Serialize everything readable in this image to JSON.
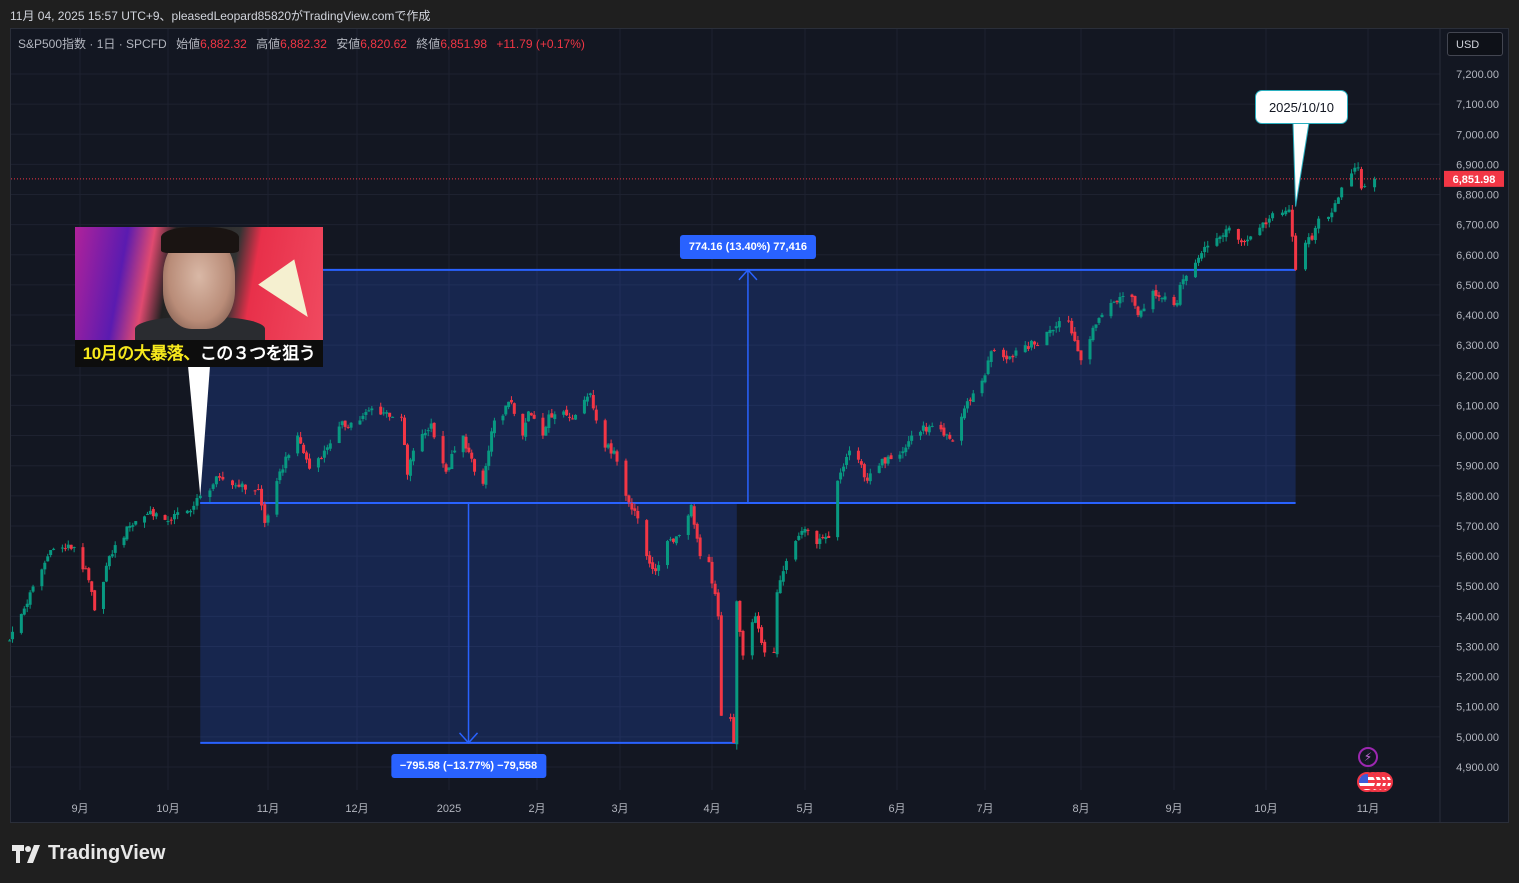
{
  "header": {
    "created_line": "11月 04, 2025 15:57 UTC+9、pleasedLeopard85820がTradingView.comで作成"
  },
  "legend": {
    "symbol": "S&P500指数 · 1日 · SPCFD",
    "open_label": "始値",
    "open": "6,882.32",
    "high_label": "高値",
    "high": "6,882.32",
    "low_label": "安値",
    "low": "6,820.62",
    "close_label": "終値",
    "close": "6,851.98",
    "change": "+11.79 (+0.17%)"
  },
  "currency_button": "USD",
  "last_price_tag": "6,851.98",
  "callout": {
    "text": "2025/10/10",
    "date": "2025-10-10",
    "price": 6760
  },
  "thumbnail": {
    "caption_yellow": "10月の大暴落、",
    "caption_white": "この３つを狙う"
  },
  "brand": "TradingView",
  "colors": {
    "up": "#089981",
    "down": "#f23645",
    "measure": "#2962ff",
    "background": "#131722",
    "grid": "#1e2230",
    "last_price": "#f23645"
  },
  "icons": [
    "lightning-icon",
    "us-flag-event-icon",
    "tradingview-logo-icon"
  ],
  "chart_data": {
    "type": "candlestick",
    "title": "",
    "interval": "1日",
    "y_axis": {
      "ylim": [
        4850,
        7250
      ],
      "ticks": [
        7200,
        7100,
        7000,
        6900,
        6800,
        6700,
        6600,
        6500,
        6400,
        6300,
        6200,
        6100,
        6000,
        5900,
        5800,
        5700,
        5600,
        5500,
        5400,
        5300,
        5200,
        5100,
        5000,
        4900
      ],
      "tick_labels": [
        "7,200.00",
        "7,100.00",
        "7,000.00",
        "6,900.00",
        "6,800.00",
        "6,700.00",
        "6,600.00",
        "6,500.00",
        "6,400.00",
        "6,300.00",
        "6,200.00",
        "6,100.00",
        "6,000.00",
        "5,900.00",
        "5,800.00",
        "5,700.00",
        "5,600.00",
        "5,500.00",
        "5,400.00",
        "5,300.00",
        "5,200.00",
        "5,100.00",
        "5,000.00",
        "4,900.00"
      ]
    },
    "x_axis": {
      "ticks": [
        {
          "date": "2024-09-01",
          "label": "9月"
        },
        {
          "date": "2024-10-01",
          "label": "10月"
        },
        {
          "date": "2024-11-01",
          "label": "11月"
        },
        {
          "date": "2024-12-01",
          "label": "12月"
        },
        {
          "date": "2025-01-01",
          "label": "2025"
        },
        {
          "date": "2025-02-01",
          "label": "2月"
        },
        {
          "date": "2025-03-01",
          "label": "3月"
        },
        {
          "date": "2025-04-01",
          "label": "4月"
        },
        {
          "date": "2025-05-01",
          "label": "5月"
        },
        {
          "date": "2025-06-01",
          "label": "6月"
        },
        {
          "date": "2025-07-01",
          "label": "7月"
        },
        {
          "date": "2025-08-01",
          "label": "8月"
        },
        {
          "date": "2025-09-01",
          "label": "9月"
        },
        {
          "date": "2025-10-01",
          "label": "10月"
        },
        {
          "date": "2025-11-01",
          "label": "11月"
        }
      ]
    },
    "grid": true,
    "last_price": 6851.98,
    "close_path": [
      [
        "2024-08-08",
        5320
      ],
      [
        "2024-08-22",
        5620
      ],
      [
        "2024-08-30",
        5630
      ],
      [
        "2024-09-04",
        5520
      ],
      [
        "2024-09-06",
        5420
      ],
      [
        "2024-09-11",
        5600
      ],
      [
        "2024-09-18",
        5700
      ],
      [
        "2024-09-25",
        5750
      ],
      [
        "2024-09-30",
        5720
      ],
      [
        "2024-10-08",
        5750
      ],
      [
        "2024-10-11",
        5800
      ],
      [
        "2024-10-17",
        5860
      ],
      [
        "2024-10-23",
        5830
      ],
      [
        "2024-10-29",
        5820
      ],
      [
        "2024-10-31",
        5710
      ],
      [
        "2024-11-07",
        5930
      ],
      [
        "2024-11-11",
        6000
      ],
      [
        "2024-11-15",
        5890
      ],
      [
        "2024-11-20",
        5950
      ],
      [
        "2024-11-25",
        6030
      ],
      [
        "2024-12-02",
        6050
      ],
      [
        "2024-12-06",
        6090
      ],
      [
        "2024-12-16",
        6060
      ],
      [
        "2024-12-18",
        5870
      ],
      [
        "2024-12-20",
        5950
      ],
      [
        "2024-12-26",
        6040
      ],
      [
        "2024-12-31",
        5880
      ],
      [
        "2025-01-03",
        5950
      ],
      [
        "2025-01-06",
        6000
      ],
      [
        "2025-01-10",
        5880
      ],
      [
        "2025-01-13",
        5840
      ],
      [
        "2025-01-15",
        5950
      ],
      [
        "2025-01-17",
        6050
      ],
      [
        "2025-01-23",
        6110
      ],
      [
        "2025-01-27",
        6000
      ],
      [
        "2025-01-29",
        6080
      ],
      [
        "2025-02-03",
        6000
      ],
      [
        "2025-02-05",
        6070
      ],
      [
        "2025-02-10",
        6080
      ],
      [
        "2025-02-12",
        6060
      ],
      [
        "2025-02-19",
        6140
      ],
      [
        "2025-02-21",
        6050
      ],
      [
        "2025-02-24",
        5960
      ],
      [
        "2025-02-27",
        5950
      ],
      [
        "2025-03-03",
        5800
      ],
      [
        "2025-03-06",
        5750
      ],
      [
        "2025-03-10",
        5600
      ],
      [
        "2025-03-13",
        5550
      ],
      [
        "2025-03-17",
        5650
      ],
      [
        "2025-03-21",
        5670
      ],
      [
        "2025-03-25",
        5770
      ],
      [
        "2025-03-28",
        5600
      ],
      [
        "2025-03-31",
        5580
      ],
      [
        "2025-04-03",
        5400
      ],
      [
        "2025-04-04",
        5070
      ],
      [
        "2025-04-07",
        5060
      ],
      [
        "2025-04-08",
        4980
      ],
      [
        "2025-04-09",
        5450
      ],
      [
        "2025-04-11",
        5270
      ],
      [
        "2025-04-15",
        5400
      ],
      [
        "2025-04-18",
        5280
      ],
      [
        "2025-04-21",
        5280
      ],
      [
        "2025-04-22",
        5480
      ],
      [
        "2025-04-24",
        5550
      ],
      [
        "2025-04-28",
        5650
      ],
      [
        "2025-05-01",
        5690
      ],
      [
        "2025-05-05",
        5640
      ],
      [
        "2025-05-09",
        5660
      ],
      [
        "2025-05-12",
        5850
      ],
      [
        "2025-05-16",
        5950
      ],
      [
        "2025-05-19",
        5920
      ],
      [
        "2025-05-22",
        5850
      ],
      [
        "2025-05-26",
        5900
      ],
      [
        "2025-05-29",
        5930
      ],
      [
        "2025-06-04",
        5960
      ],
      [
        "2025-06-06",
        6000
      ],
      [
        "2025-06-12",
        6030
      ],
      [
        "2025-06-17",
        6000
      ],
      [
        "2025-06-20",
        5980
      ],
      [
        "2025-06-24",
        6090
      ],
      [
        "2025-06-27",
        6140
      ],
      [
        "2025-07-01",
        6200
      ],
      [
        "2025-07-03",
        6280
      ],
      [
        "2025-07-07",
        6260
      ],
      [
        "2025-07-10",
        6260
      ],
      [
        "2025-07-14",
        6300
      ],
      [
        "2025-07-18",
        6300
      ],
      [
        "2025-07-22",
        6350
      ],
      [
        "2025-07-25",
        6380
      ],
      [
        "2025-07-28",
        6380
      ],
      [
        "2025-08-01",
        6250
      ],
      [
        "2025-08-04",
        6320
      ],
      [
        "2025-08-07",
        6390
      ],
      [
        "2025-08-11",
        6440
      ],
      [
        "2025-08-14",
        6460
      ],
      [
        "2025-08-18",
        6460
      ],
      [
        "2025-08-20",
        6400
      ],
      [
        "2025-08-25",
        6480
      ],
      [
        "2025-08-27",
        6460
      ],
      [
        "2025-09-02",
        6440
      ],
      [
        "2025-09-03",
        6500
      ],
      [
        "2025-09-05",
        6530
      ],
      [
        "2025-09-09",
        6590
      ],
      [
        "2025-09-12",
        6630
      ],
      [
        "2025-09-16",
        6660
      ],
      [
        "2025-09-19",
        6690
      ],
      [
        "2025-09-22",
        6650
      ],
      [
        "2025-09-25",
        6650
      ],
      [
        "2025-09-29",
        6690
      ],
      [
        "2025-10-02",
        6720
      ],
      [
        "2025-10-06",
        6740
      ],
      [
        "2025-10-08",
        6750
      ],
      [
        "2025-10-10",
        6550
      ],
      [
        "2025-10-13",
        6640
      ],
      [
        "2025-10-15",
        6650
      ],
      [
        "2025-10-17",
        6720
      ],
      [
        "2025-10-21",
        6740
      ],
      [
        "2025-10-23",
        6790
      ],
      [
        "2025-10-27",
        6870
      ],
      [
        "2025-10-29",
        6890
      ],
      [
        "2025-10-30",
        6820
      ],
      [
        "2025-11-03",
        6852
      ]
    ],
    "annotations": [
      {
        "kind": "price-range",
        "from_date": "2024-10-11",
        "to_date": "2025-10-10",
        "from_price": 5776,
        "to_price": 6550,
        "label": "774.16 (13.40%) 77,416",
        "direction": "up"
      },
      {
        "kind": "price-range",
        "from_date": "2024-10-11",
        "to_date": "2025-04-09",
        "from_price": 5776,
        "to_price": 4980,
        "label": "−795.58 (−13.77%) −79,558",
        "direction": "down"
      }
    ]
  }
}
